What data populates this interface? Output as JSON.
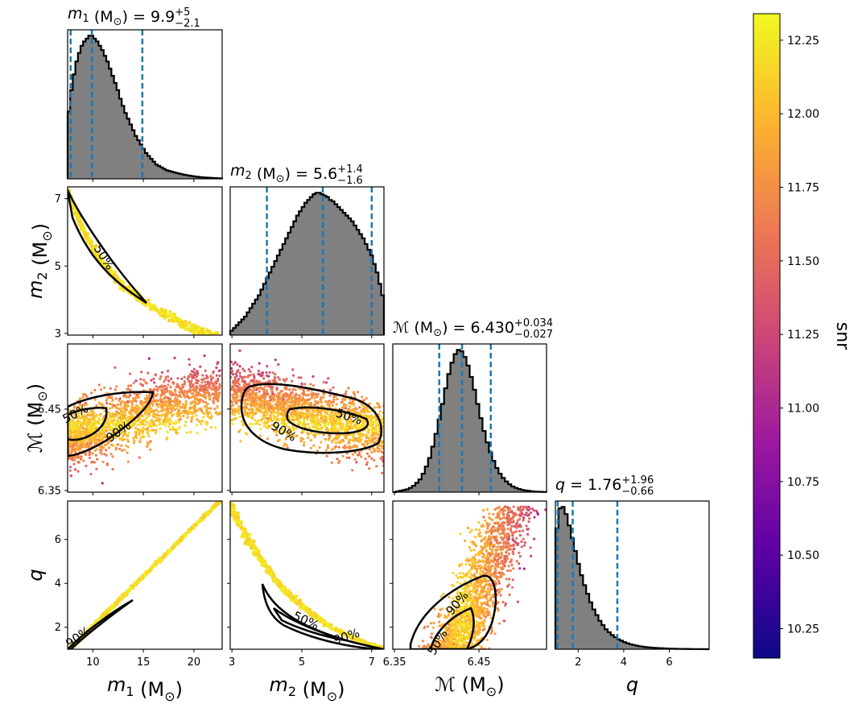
{
  "chart_data": {
    "type": "corner",
    "colorbar": {
      "label": "snr",
      "range": [
        10.15,
        12.34
      ],
      "ticks": [
        "10.25",
        "10.50",
        "10.75",
        "11.00",
        "11.25",
        "11.50",
        "11.75",
        "12.00",
        "12.25"
      ],
      "tick_values": [
        10.25,
        10.5,
        10.75,
        11.0,
        11.25,
        11.5,
        11.75,
        12.0,
        12.25
      ],
      "colormap": [
        "#0d0887",
        "#5c01a6",
        "#9c179e",
        "#cc4778",
        "#ed7953",
        "#fdb42f",
        "#f0f921"
      ]
    },
    "histogram_fill": "#808080",
    "quantile_line_color": "#1f77b4",
    "contour_levels": [
      "50%",
      "90%"
    ],
    "parameters": [
      {
        "key": "m1",
        "axis_label_main": "m",
        "axis_label_sub": "1",
        "axis_label_unit": " (M",
        "axis_label_unit_sub": "⊙",
        "axis_label_close": ")",
        "title_main": " = 9.9",
        "title_plus": "+5",
        "title_minus": "−2.1",
        "range": [
          7.5,
          22.8
        ],
        "ticks": [
          "10",
          "15",
          "20"
        ],
        "tick_values": [
          10,
          15,
          20
        ],
        "median": 9.9,
        "lower": 7.8,
        "upper": 14.9,
        "hist": [
          0.47,
          0.62,
          0.73,
          0.82,
          0.88,
          0.93,
          0.96,
          0.98,
          1.0,
          1.0,
          0.98,
          0.96,
          0.93,
          0.9,
          0.86,
          0.82,
          0.77,
          0.72,
          0.67,
          0.62,
          0.56,
          0.51,
          0.46,
          0.42,
          0.38,
          0.34,
          0.3,
          0.27,
          0.24,
          0.21,
          0.18,
          0.16,
          0.14,
          0.12,
          0.1,
          0.09,
          0.08,
          0.07,
          0.06,
          0.055,
          0.05,
          0.045,
          0.04,
          0.036,
          0.032,
          0.028,
          0.025,
          0.022,
          0.019,
          0.016,
          0.014,
          0.012,
          0.01,
          0.009,
          0.008,
          0.007,
          0.006,
          0.005,
          0.004,
          0.003
        ]
      },
      {
        "key": "m2",
        "axis_label_main": "m",
        "axis_label_sub": "2",
        "axis_label_unit": " (M",
        "axis_label_unit_sub": "⊙",
        "axis_label_close": ")",
        "title_main": " = 5.6",
        "title_plus": "+1.4",
        "title_minus": "−1.6",
        "range": [
          2.95,
          7.35
        ],
        "ticks": [
          "3",
          "5",
          "7"
        ],
        "tick_values": [
          3,
          5,
          7
        ],
        "median": 5.6,
        "lower": 4.0,
        "upper": 7.0,
        "hist": [
          0.03,
          0.05,
          0.07,
          0.09,
          0.11,
          0.13,
          0.16,
          0.19,
          0.22,
          0.25,
          0.28,
          0.32,
          0.36,
          0.4,
          0.44,
          0.48,
          0.52,
          0.56,
          0.6,
          0.64,
          0.68,
          0.72,
          0.76,
          0.8,
          0.84,
          0.87,
          0.9,
          0.93,
          0.95,
          0.97,
          0.99,
          1.0,
          1.0,
          0.99,
          0.98,
          0.97,
          0.95,
          0.94,
          0.92,
          0.9,
          0.88,
          0.86,
          0.84,
          0.82,
          0.8,
          0.77,
          0.74,
          0.71,
          0.68,
          0.64,
          0.6,
          0.56,
          0.5,
          0.44,
          0.36,
          0.28
        ]
      },
      {
        "key": "Mc",
        "axis_label_main": "ℳ",
        "axis_label_sub": "",
        "axis_label_unit": " (M",
        "axis_label_unit_sub": "⊙",
        "axis_label_close": ")",
        "title_main": " = 6.430",
        "title_plus": "+0.034",
        "title_minus": "−0.027",
        "range": [
          6.348,
          6.53
        ],
        "ticks": [
          "6.35",
          "6.45"
        ],
        "tick_values": [
          6.35,
          6.45
        ],
        "median": 6.43,
        "lower": 6.403,
        "upper": 6.464,
        "hist": [
          0.0,
          0.005,
          0.01,
          0.015,
          0.02,
          0.03,
          0.045,
          0.065,
          0.09,
          0.13,
          0.18,
          0.24,
          0.32,
          0.41,
          0.51,
          0.62,
          0.73,
          0.83,
          0.91,
          0.97,
          1.0,
          0.99,
          0.95,
          0.89,
          0.81,
          0.72,
          0.62,
          0.52,
          0.43,
          0.35,
          0.28,
          0.22,
          0.17,
          0.13,
          0.1,
          0.075,
          0.055,
          0.04,
          0.03,
          0.022,
          0.016,
          0.012,
          0.009,
          0.006,
          0.004,
          0.003,
          0.002,
          0.001
        ]
      },
      {
        "key": "q",
        "axis_label_main": "q",
        "axis_label_sub": "",
        "axis_label_unit": "",
        "axis_label_unit_sub": "",
        "axis_label_close": "",
        "title_main": " = 1.76",
        "title_plus": "+1.96",
        "title_minus": "−0.66",
        "range": [
          1.0,
          7.75
        ],
        "ticks": [
          "2",
          "4",
          "6"
        ],
        "tick_values": [
          2,
          4,
          6
        ],
        "median": 1.76,
        "lower": 1.1,
        "upper": 3.72,
        "hist": [
          0.85,
          0.99,
          1.0,
          0.95,
          0.87,
          0.78,
          0.69,
          0.6,
          0.52,
          0.45,
          0.39,
          0.33,
          0.28,
          0.24,
          0.2,
          0.17,
          0.14,
          0.12,
          0.1,
          0.085,
          0.07,
          0.06,
          0.05,
          0.042,
          0.035,
          0.03,
          0.025,
          0.021,
          0.018,
          0.015,
          0.013,
          0.011,
          0.009,
          0.008,
          0.007,
          0.006,
          0.005,
          0.004,
          0.0035,
          0.003,
          0.0025,
          0.002,
          0.002,
          0.0015,
          0.001,
          0.001,
          0.001,
          0.0005,
          0.0005,
          0.0
        ]
      }
    ]
  }
}
